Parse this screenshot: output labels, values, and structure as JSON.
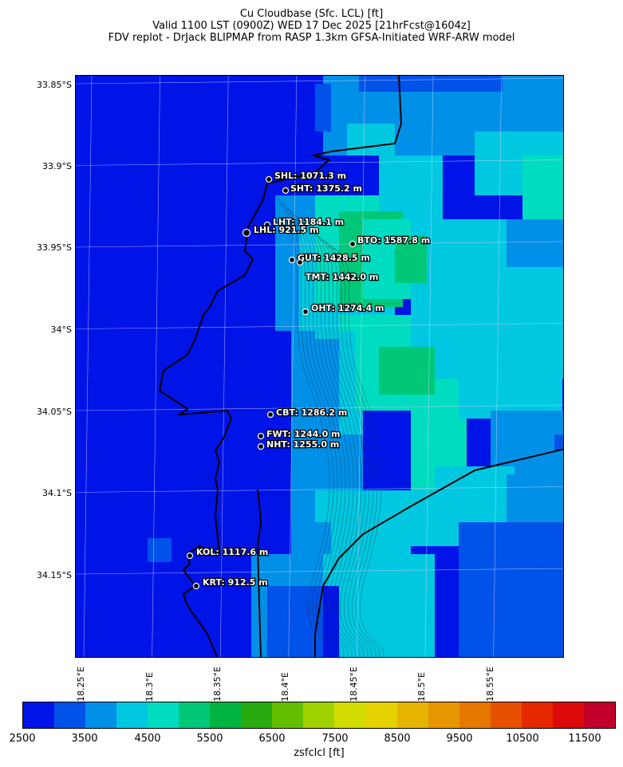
{
  "title": {
    "line1": "Cu Cloudbase (Sfc. LCL) [ft]",
    "line2": "Valid 1100 LST (0900Z) WED 17 Dec 2025 [21hrFcst@1604z]",
    "line3": "FDV replot - DrJack BLIPMAP from RASP 1.3km GFSA-Initiated WRF-ARW model"
  },
  "axes": {
    "lat_ticks": [
      "33.85°S",
      "33.9°S",
      "33.95°S",
      "34°S",
      "34.05°S",
      "34.1°S",
      "34.15°S"
    ],
    "lon_ticks": [
      "18.25°E",
      "18.3°E",
      "18.35°E",
      "18.4°E",
      "18.45°E",
      "18.5°E",
      "18.55°E"
    ]
  },
  "colorbar": {
    "label": "zsfclcl [ft]",
    "ticks": [
      "2500",
      "3500",
      "4500",
      "5500",
      "6500",
      "7500",
      "8500",
      "9500",
      "10500",
      "11500"
    ],
    "colors": [
      "#0014e8",
      "#0052e8",
      "#0090e8",
      "#00c8e0",
      "#00dcc0",
      "#00c878",
      "#00b440",
      "#28aa10",
      "#64be00",
      "#a0d200",
      "#d2dc00",
      "#e6d200",
      "#e6b400",
      "#e69600",
      "#e67800",
      "#e65000",
      "#e62800",
      "#dc0a0a",
      "#c00028"
    ],
    "min": 2500,
    "max": 12000
  },
  "sites": [
    {
      "label": "SHL: 1071.3 m"
    },
    {
      "label": "SHT: 1375.2 m"
    },
    {
      "label": "LHT: 1184.1 m"
    },
    {
      "label": "LHL: 921.5 m"
    },
    {
      "label": "BTO: 1587.8 m"
    },
    {
      "label": "GUT: 1428.5 m"
    },
    {
      "label": "TMT: 1442.0 m"
    },
    {
      "label": "OHT: 1274.4 m"
    },
    {
      "label": "CBT: 1286.2 m"
    },
    {
      "label": "FWT: 1244.0 m"
    },
    {
      "label": "NHT: 1255.0 m"
    },
    {
      "label": "KOL: 1117.6 m"
    },
    {
      "label": "KRT: 912.5 m"
    }
  ]
}
